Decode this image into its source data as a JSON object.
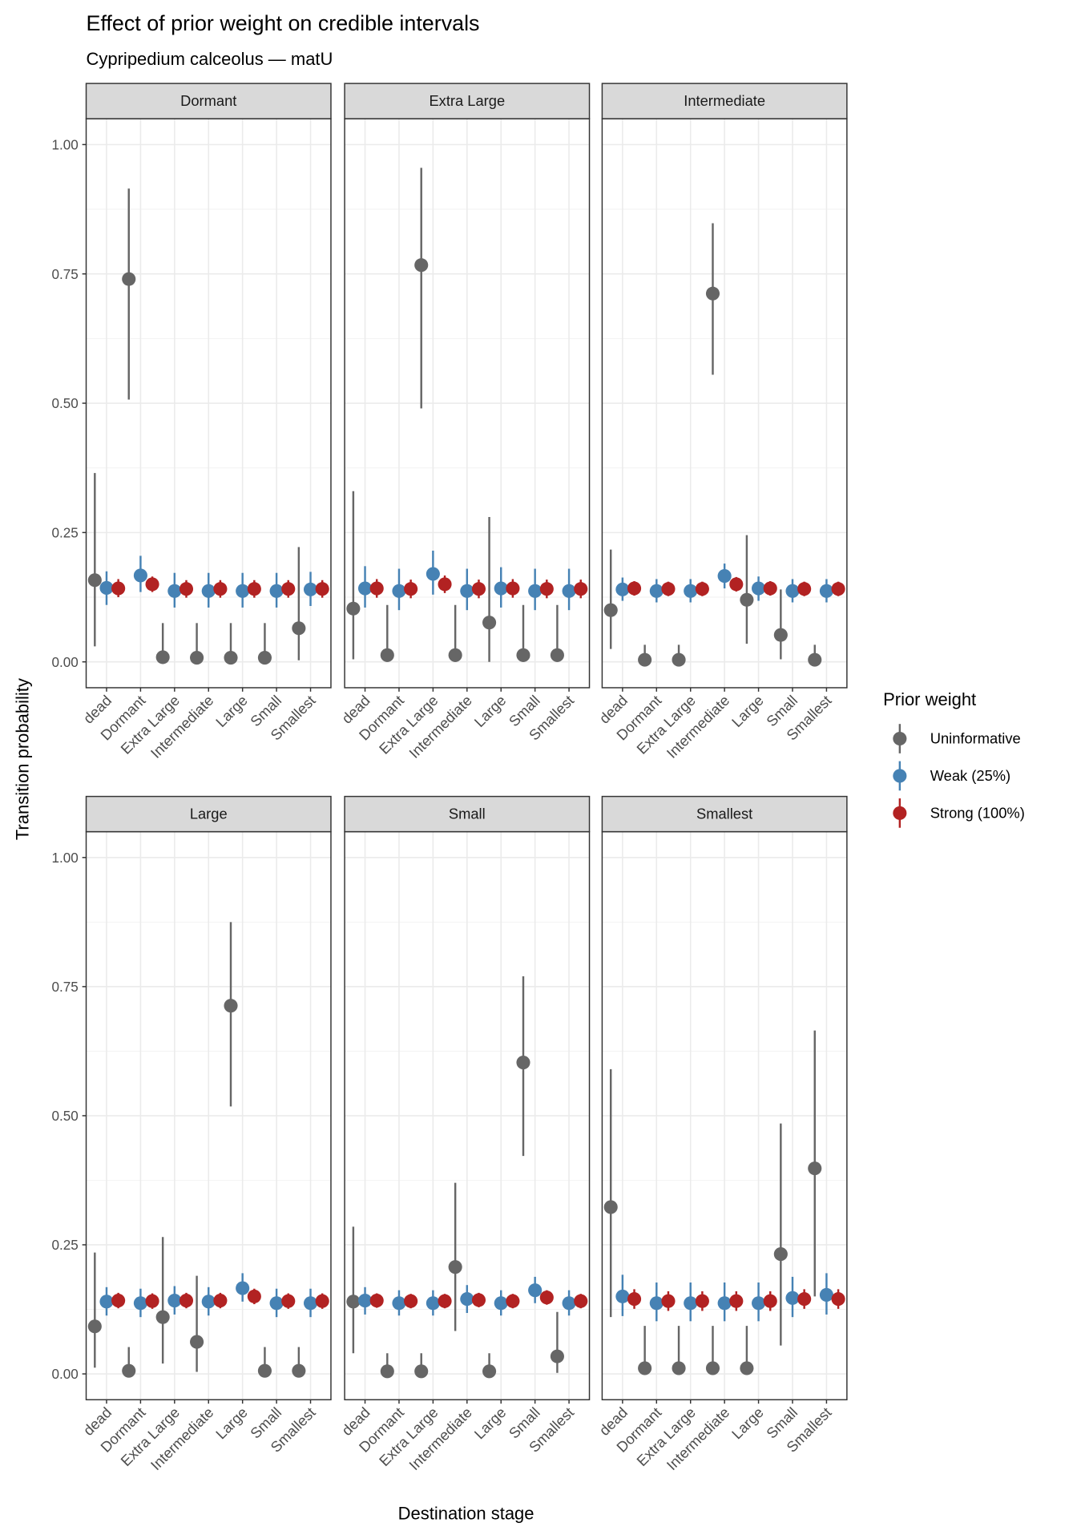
{
  "chart_data": {
    "type": "scatter",
    "subtype": "pointrange-faceted",
    "title": "Effect of prior weight on credible intervals",
    "subtitle": "Cypripedium calceolus — matU",
    "xlabel": "Destination stage",
    "ylabel": "Transition probability",
    "ylim": [
      -0.05,
      1.05
    ],
    "yticks": [
      0,
      0.25,
      0.5,
      0.75,
      1
    ],
    "ytick_labels": [
      "0.00",
      "0.25",
      "0.50",
      "0.75",
      "1.00"
    ],
    "grid": true,
    "categories": [
      "dead",
      "Dormant",
      "Extra Large",
      "Intermediate",
      "Large",
      "Small",
      "Smallest"
    ],
    "legend": {
      "title": "Prior weight",
      "position": "right",
      "entries": [
        {
          "name": "Uninformative",
          "color": "#666666"
        },
        {
          "name": "Weak (25%)",
          "color": "#4682B4"
        },
        {
          "name": "Strong (100%)",
          "color": "#B22222"
        }
      ]
    },
    "series_order": [
      "Uninformative",
      "Weak (25%)",
      "Strong (100%)"
    ],
    "panels": [
      {
        "title": "Dormant",
        "data": {
          "Uninformative": [
            [
              0.158,
              0.03,
              0.365
            ],
            [
              0.74,
              0.507,
              0.915
            ],
            [
              0.009,
              0,
              0.075
            ],
            [
              0.008,
              0,
              0.075
            ],
            [
              0.008,
              0,
              0.075
            ],
            [
              0.008,
              0,
              0.075
            ],
            [
              0.065,
              0.003,
              0.222
            ]
          ],
          "Weak (25%)": [
            [
              0.143,
              0.11,
              0.175
            ],
            [
              0.167,
              0.135,
              0.205
            ],
            [
              0.137,
              0.105,
              0.172
            ],
            [
              0.137,
              0.105,
              0.172
            ],
            [
              0.137,
              0.105,
              0.172
            ],
            [
              0.137,
              0.105,
              0.172
            ],
            [
              0.14,
              0.108,
              0.174
            ]
          ],
          "Strong (100%)": [
            [
              0.142,
              0.125,
              0.16
            ],
            [
              0.15,
              0.135,
              0.165
            ],
            [
              0.141,
              0.124,
              0.158
            ],
            [
              0.141,
              0.124,
              0.158
            ],
            [
              0.141,
              0.124,
              0.158
            ],
            [
              0.141,
              0.124,
              0.158
            ],
            [
              0.141,
              0.124,
              0.158
            ]
          ]
        }
      },
      {
        "title": "Extra Large",
        "data": {
          "Uninformative": [
            [
              0.103,
              0.005,
              0.33
            ],
            [
              0.013,
              0,
              0.11
            ],
            [
              0.767,
              0.49,
              0.955
            ],
            [
              0.013,
              0,
              0.11
            ],
            [
              0.076,
              0,
              0.28
            ],
            [
              0.013,
              0,
              0.11
            ],
            [
              0.013,
              0,
              0.11
            ]
          ],
          "Weak (25%)": [
            [
              0.142,
              0.105,
              0.185
            ],
            [
              0.137,
              0.1,
              0.18
            ],
            [
              0.17,
              0.13,
              0.215
            ],
            [
              0.137,
              0.1,
              0.18
            ],
            [
              0.142,
              0.105,
              0.183
            ],
            [
              0.137,
              0.1,
              0.18
            ],
            [
              0.137,
              0.1,
              0.18
            ]
          ],
          "Strong (100%)": [
            [
              0.142,
              0.124,
              0.16
            ],
            [
              0.141,
              0.123,
              0.159
            ],
            [
              0.15,
              0.133,
              0.167
            ],
            [
              0.141,
              0.123,
              0.159
            ],
            [
              0.142,
              0.124,
              0.16
            ],
            [
              0.141,
              0.123,
              0.159
            ],
            [
              0.141,
              0.123,
              0.159
            ]
          ]
        }
      },
      {
        "title": "Intermediate",
        "data": {
          "Uninformative": [
            [
              0.1,
              0.025,
              0.217
            ],
            [
              0.004,
              0,
              0.033
            ],
            [
              0.004,
              0,
              0.033
            ],
            [
              0.712,
              0.555,
              0.848
            ],
            [
              0.12,
              0.035,
              0.245
            ],
            [
              0.052,
              0.005,
              0.14
            ],
            [
              0.004,
              0,
              0.033
            ]
          ],
          "Weak (25%)": [
            [
              0.14,
              0.118,
              0.163
            ],
            [
              0.137,
              0.115,
              0.16
            ],
            [
              0.137,
              0.115,
              0.16
            ],
            [
              0.166,
              0.142,
              0.19
            ],
            [
              0.142,
              0.118,
              0.165
            ],
            [
              0.137,
              0.115,
              0.16
            ],
            [
              0.137,
              0.115,
              0.16
            ]
          ],
          "Strong (100%)": [
            [
              0.142,
              0.128,
              0.156
            ],
            [
              0.141,
              0.127,
              0.155
            ],
            [
              0.141,
              0.127,
              0.155
            ],
            [
              0.15,
              0.136,
              0.164
            ],
            [
              0.142,
              0.128,
              0.156
            ],
            [
              0.141,
              0.127,
              0.155
            ],
            [
              0.141,
              0.127,
              0.155
            ]
          ]
        }
      },
      {
        "title": "Large",
        "data": {
          "Uninformative": [
            [
              0.092,
              0.012,
              0.235
            ],
            [
              0.006,
              0,
              0.052
            ],
            [
              0.11,
              0.02,
              0.265
            ],
            [
              0.062,
              0.004,
              0.19
            ],
            [
              0.713,
              0.518,
              0.875
            ],
            [
              0.006,
              0,
              0.052
            ],
            [
              0.006,
              0,
              0.052
            ]
          ],
          "Weak (25%)": [
            [
              0.14,
              0.113,
              0.168
            ],
            [
              0.137,
              0.11,
              0.165
            ],
            [
              0.142,
              0.115,
              0.17
            ],
            [
              0.14,
              0.113,
              0.168
            ],
            [
              0.166,
              0.14,
              0.195
            ],
            [
              0.137,
              0.11,
              0.165
            ],
            [
              0.137,
              0.11,
              0.165
            ]
          ],
          "Strong (100%)": [
            [
              0.142,
              0.127,
              0.157
            ],
            [
              0.141,
              0.126,
              0.156
            ],
            [
              0.142,
              0.127,
              0.157
            ],
            [
              0.142,
              0.127,
              0.157
            ],
            [
              0.15,
              0.135,
              0.165
            ],
            [
              0.141,
              0.126,
              0.156
            ],
            [
              0.141,
              0.126,
              0.156
            ]
          ]
        }
      },
      {
        "title": "Small",
        "data": {
          "Uninformative": [
            [
              0.14,
              0.04,
              0.285
            ],
            [
              0.005,
              0,
              0.04
            ],
            [
              0.005,
              0,
              0.04
            ],
            [
              0.207,
              0.083,
              0.37
            ],
            [
              0.005,
              0,
              0.04
            ],
            [
              0.603,
              0.422,
              0.77
            ],
            [
              0.034,
              0.002,
              0.12
            ]
          ],
          "Weak (25%)": [
            [
              0.142,
              0.115,
              0.168
            ],
            [
              0.137,
              0.113,
              0.162
            ],
            [
              0.137,
              0.113,
              0.162
            ],
            [
              0.145,
              0.118,
              0.172
            ],
            [
              0.137,
              0.113,
              0.162
            ],
            [
              0.162,
              0.137,
              0.188
            ],
            [
              0.137,
              0.113,
              0.162
            ]
          ],
          "Strong (100%)": [
            [
              0.142,
              0.128,
              0.156
            ],
            [
              0.141,
              0.127,
              0.155
            ],
            [
              0.141,
              0.127,
              0.155
            ],
            [
              0.143,
              0.129,
              0.157
            ],
            [
              0.141,
              0.127,
              0.155
            ],
            [
              0.148,
              0.134,
              0.162
            ],
            [
              0.141,
              0.127,
              0.155
            ]
          ]
        }
      },
      {
        "title": "Smallest",
        "data": {
          "Uninformative": [
            [
              0.323,
              0.11,
              0.59
            ],
            [
              0.011,
              0,
              0.093
            ],
            [
              0.011,
              0,
              0.093
            ],
            [
              0.011,
              0,
              0.093
            ],
            [
              0.011,
              0,
              0.093
            ],
            [
              0.232,
              0.055,
              0.485
            ],
            [
              0.398,
              0.15,
              0.665
            ]
          ],
          "Weak (25%)": [
            [
              0.15,
              0.112,
              0.192
            ],
            [
              0.137,
              0.102,
              0.177
            ],
            [
              0.137,
              0.102,
              0.177
            ],
            [
              0.137,
              0.102,
              0.177
            ],
            [
              0.137,
              0.102,
              0.177
            ],
            [
              0.147,
              0.11,
              0.188
            ],
            [
              0.153,
              0.115,
              0.195
            ]
          ],
          "Strong (100%)": [
            [
              0.145,
              0.126,
              0.164
            ],
            [
              0.141,
              0.122,
              0.16
            ],
            [
              0.141,
              0.122,
              0.16
            ],
            [
              0.141,
              0.122,
              0.16
            ],
            [
              0.141,
              0.122,
              0.16
            ],
            [
              0.145,
              0.126,
              0.164
            ],
            [
              0.145,
              0.126,
              0.164
            ]
          ]
        }
      }
    ]
  }
}
